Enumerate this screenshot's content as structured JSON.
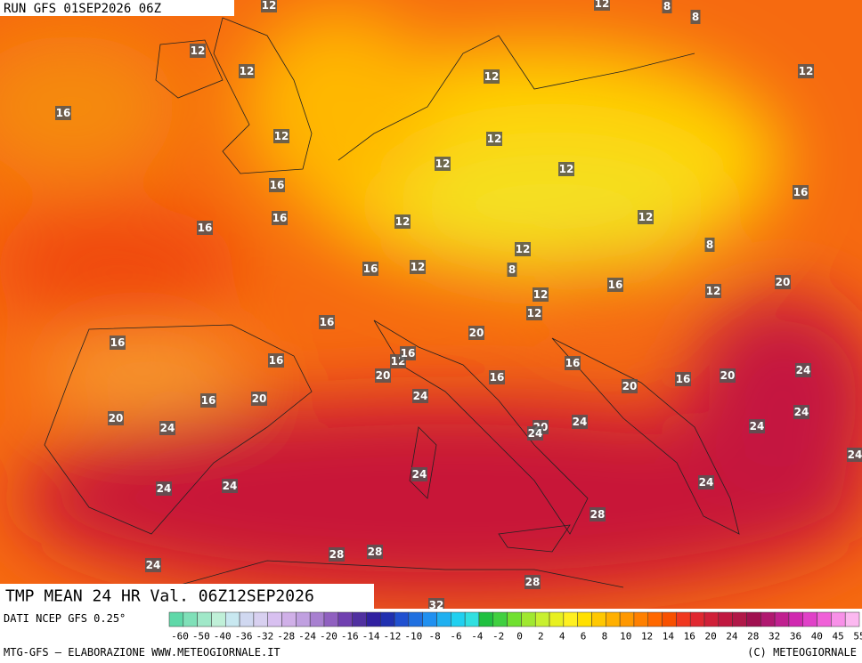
{
  "header": {
    "run": "RUN GFS 01SEP2026 06Z"
  },
  "map": {
    "title": "TMP MEAN 24 HR Val. 06Z12SEP2026",
    "isotherm_labels": [
      12,
      12,
      8,
      8,
      12,
      12,
      12,
      12,
      16,
      12,
      12,
      12,
      12,
      16,
      16,
      16,
      12,
      12,
      16,
      8,
      12,
      16,
      12,
      8,
      16,
      12,
      12,
      20,
      12,
      16,
      20,
      16,
      12,
      16,
      16,
      16,
      24,
      20,
      16,
      16,
      20,
      20,
      24,
      16,
      20,
      20,
      24,
      24,
      24,
      20,
      24,
      24,
      24,
      24,
      24,
      24,
      24,
      28,
      24,
      28,
      28,
      28,
      32
    ]
  },
  "legend": {
    "source": "DATI NCEP GFS 0.25°",
    "labels": [
      "-60",
      "-50",
      "-40",
      "-36",
      "-32",
      "-28",
      "-24",
      "-20",
      "-16",
      "-14",
      "-12",
      "-10",
      "-8",
      "-6",
      "-4",
      "-2",
      "0",
      "2",
      "4",
      "6",
      "8",
      "10",
      "12",
      "14",
      "16",
      "20",
      "24",
      "28",
      "32",
      "36",
      "40",
      "45",
      "55"
    ],
    "colors": [
      "#5fd8a8",
      "#7fe0b8",
      "#a0e8c8",
      "#c0f0d8",
      "#c8e8f0",
      "#d0d8f0",
      "#d8d0f0",
      "#d8c0f0",
      "#d0b0e8",
      "#c0a0e0",
      "#a880d0",
      "#9060c0",
      "#7040b0",
      "#5030a0",
      "#3020a0",
      "#2030b0",
      "#2050d0",
      "#2070e0",
      "#2090f0",
      "#20b0f0",
      "#20d0f0",
      "#30e0e0",
      "#20c040",
      "#40d040",
      "#70e030",
      "#a0e830",
      "#c8f030",
      "#e8f020",
      "#fff020",
      "#ffe000",
      "#ffc800",
      "#ffb000",
      "#ff9800",
      "#ff8000",
      "#ff6800",
      "#f85000",
      "#f03820",
      "#e02830",
      "#d02038",
      "#c01840",
      "#b01848",
      "#a01050",
      "#b01870",
      "#c02090",
      "#d028b0",
      "#e040c8",
      "#f060d8",
      "#f890e8",
      "#fcb8f0"
    ]
  },
  "footer": {
    "left": "MTG-GFS — ELABORAZIONE WWW.METEOGIORNALE.IT",
    "right": "(C) METEOGIORNALE"
  }
}
